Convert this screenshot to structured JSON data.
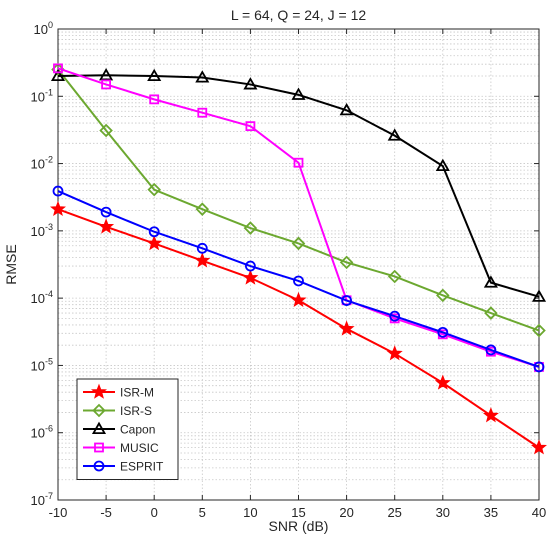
{
  "chart_data": {
    "type": "line",
    "title": "L = 64, Q = 24, J = 12",
    "xlabel": "SNR (dB)",
    "ylabel": "RMSE",
    "x": [
      -10,
      -5,
      0,
      5,
      10,
      15,
      20,
      25,
      30,
      35,
      40
    ],
    "xticks": [
      "-10",
      "-5",
      "0",
      "5",
      "10",
      "15",
      "20",
      "25",
      "30",
      "35",
      "40"
    ],
    "xlim": [
      -10,
      40
    ],
    "yscale": "log",
    "ylim": [
      1e-07,
      1
    ],
    "yticks": [
      {
        "base": "10",
        "exp": "0"
      },
      {
        "base": "10",
        "exp": "-1"
      },
      {
        "base": "10",
        "exp": "-2"
      },
      {
        "base": "10",
        "exp": "-3"
      },
      {
        "base": "10",
        "exp": "-4"
      },
      {
        "base": "10",
        "exp": "-5"
      },
      {
        "base": "10",
        "exp": "-6"
      },
      {
        "base": "10",
        "exp": "-7"
      }
    ],
    "grid": true,
    "legend_position": "bottom-left",
    "series": [
      {
        "name": "ISR-M",
        "color": "#ff0000",
        "marker": "star",
        "values": [
          0.0021,
          0.00115,
          0.00065,
          0.00036,
          0.0002,
          9.3e-05,
          3.5e-05,
          1.5e-05,
          5.5e-06,
          1.8e-06,
          6e-07
        ]
      },
      {
        "name": "ISR-S",
        "color": "#6ca830",
        "marker": "diamond",
        "values": [
          0.25,
          0.031,
          0.0041,
          0.0021,
          0.0011,
          0.00065,
          0.00034,
          0.00021,
          0.00011,
          6e-05,
          3.3e-05
        ]
      },
      {
        "name": "Capon",
        "color": "#000000",
        "marker": "triangle",
        "values": [
          0.2,
          0.205,
          0.2,
          0.19,
          0.15,
          0.105,
          0.062,
          0.026,
          0.0092,
          0.00017,
          0.000105
        ]
      },
      {
        "name": "MUSIC",
        "color": "#ff00ff",
        "marker": "square",
        "values": [
          0.26,
          0.15,
          0.09,
          0.057,
          0.036,
          0.0103,
          9.3e-05,
          5e-05,
          2.9e-05,
          1.6e-05,
          9.5e-06
        ]
      },
      {
        "name": "ESPRIT",
        "color": "#0000ff",
        "marker": "circle",
        "values": [
          0.0039,
          0.0019,
          0.00097,
          0.00055,
          0.0003,
          0.00018,
          9.2e-05,
          5.4e-05,
          3.1e-05,
          1.7e-05,
          9.5e-06
        ]
      }
    ]
  }
}
